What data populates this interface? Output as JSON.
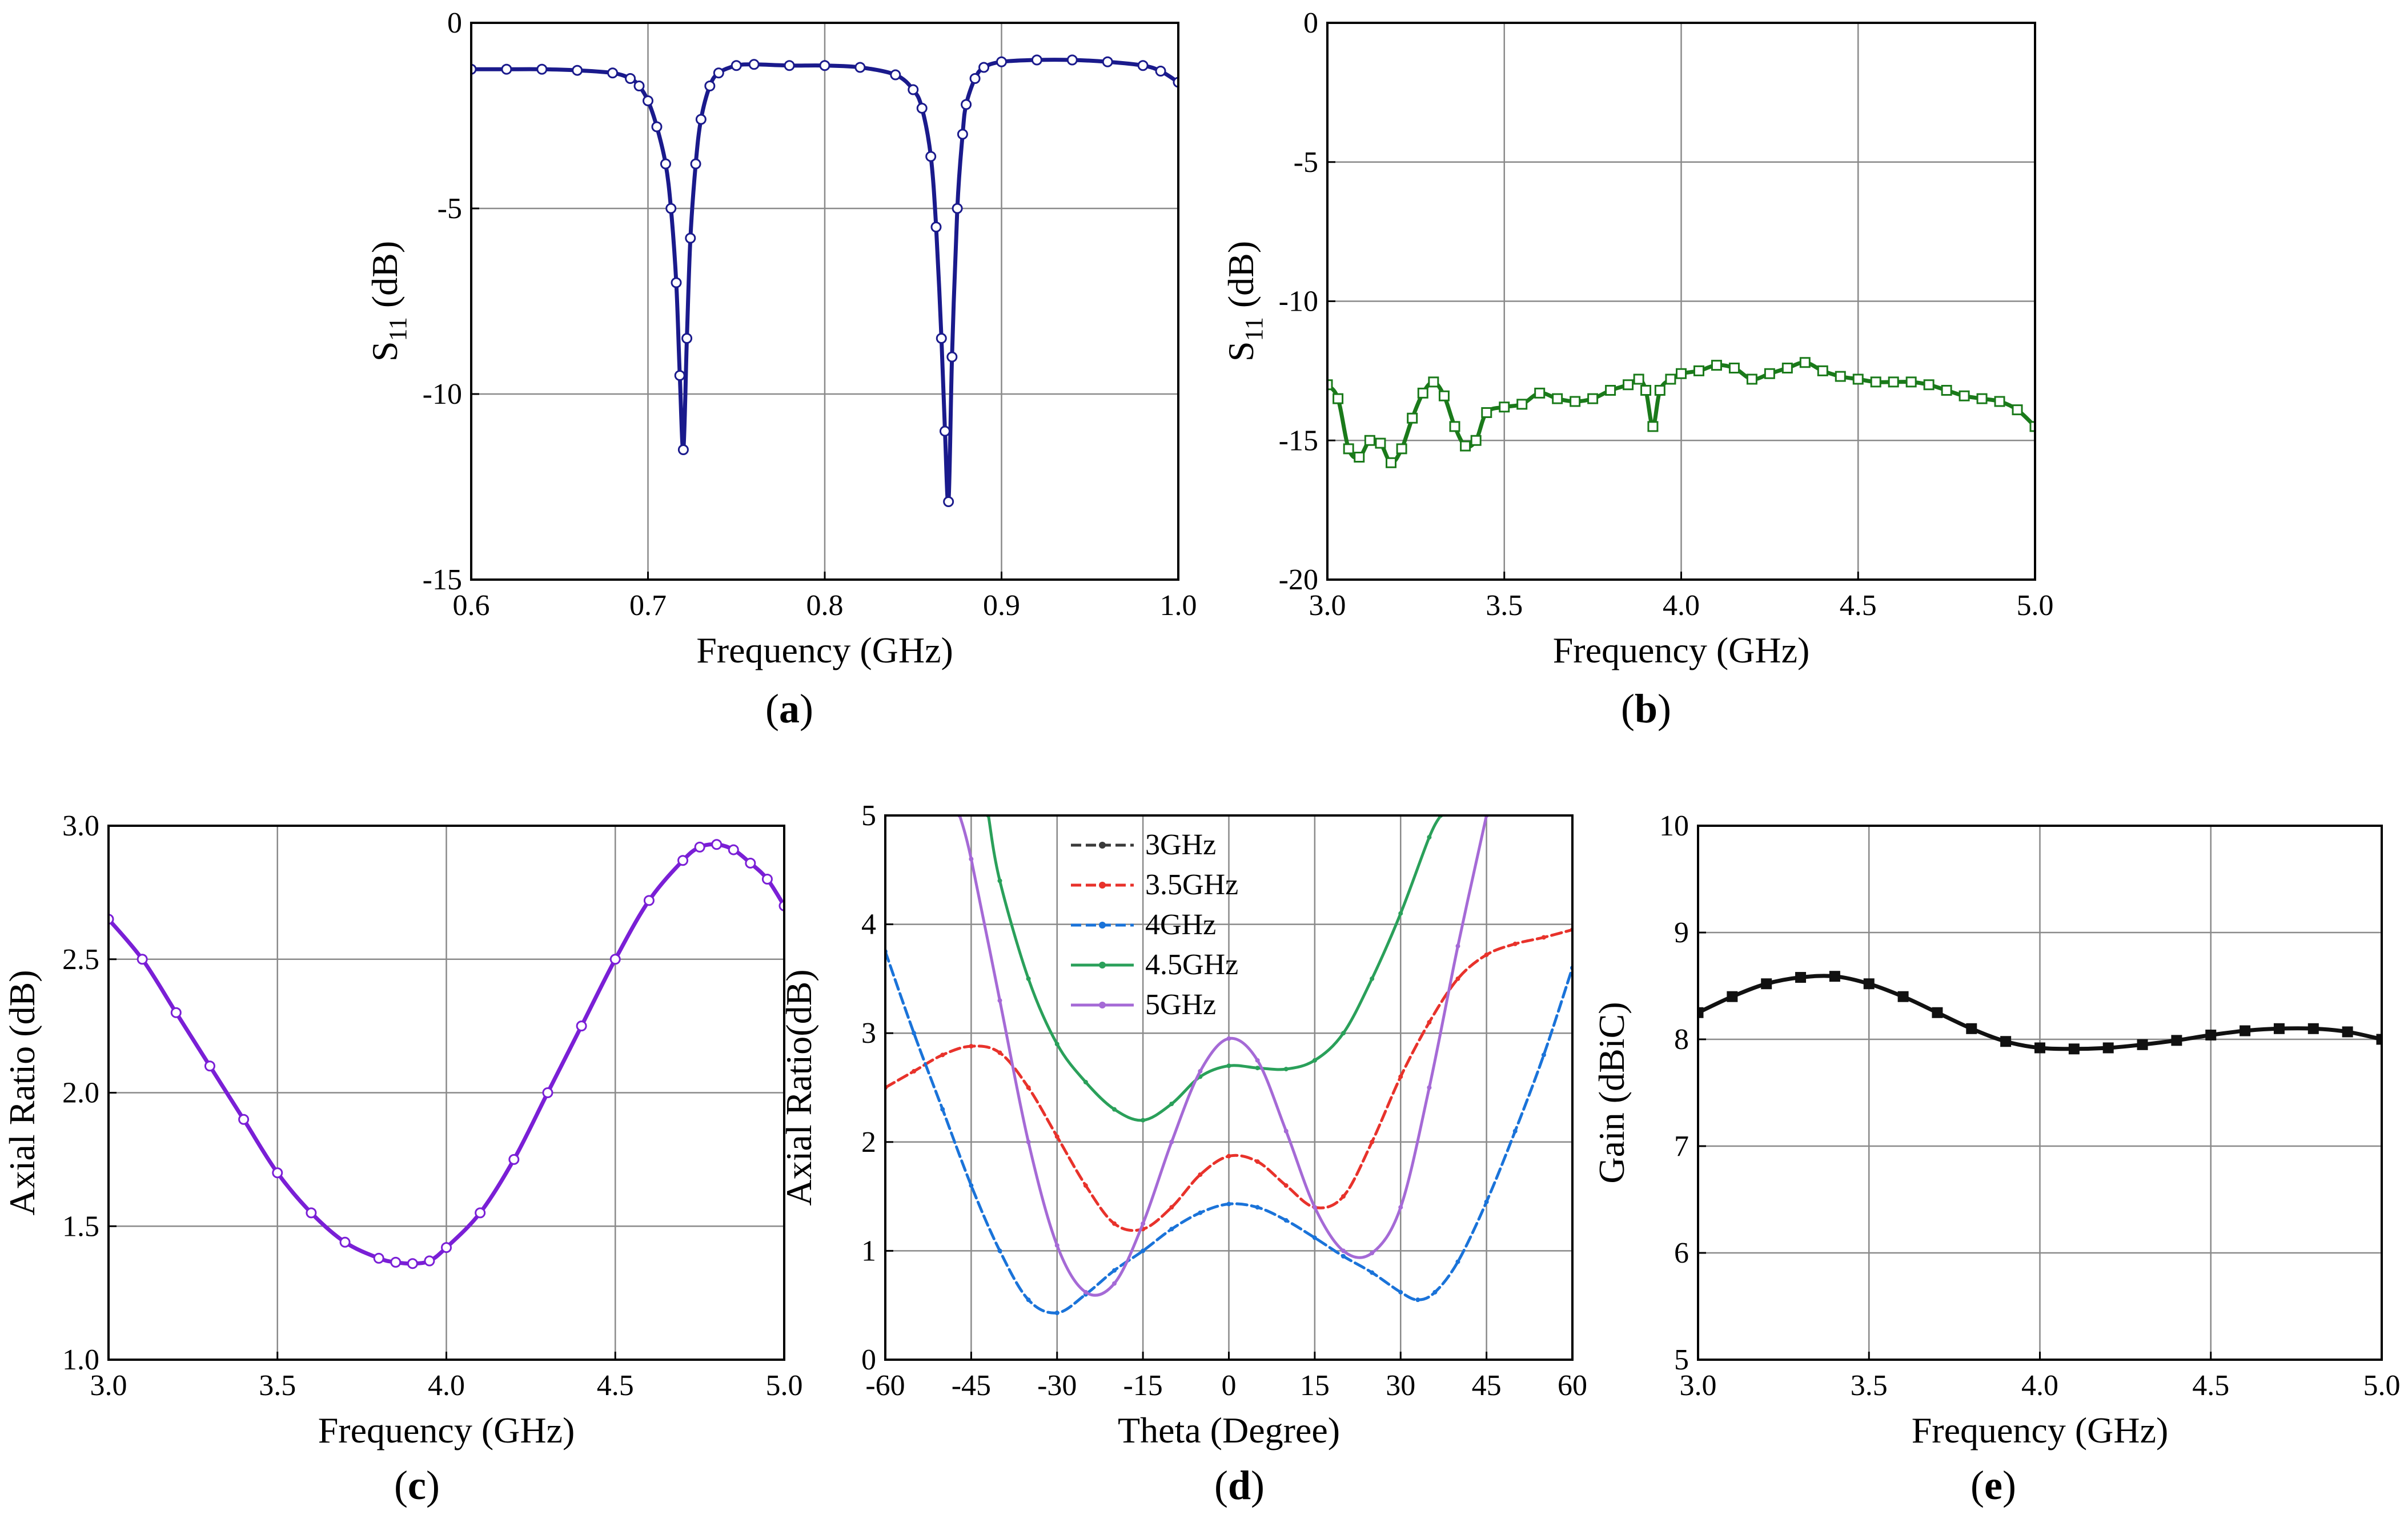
{
  "captions": [
    "(a)",
    "(b)",
    "(c)",
    "(d)",
    "(e)"
  ],
  "chart_data": [
    {
      "id": "a",
      "type": "line",
      "caption_letter": "a",
      "xlabel": "Frequency (GHz)",
      "ylabel_main": "S",
      "ylabel_sub": "11",
      "ylabel_unit": " (dB)",
      "xlim": [
        0.6,
        1.0
      ],
      "ylim": [
        -15,
        0
      ],
      "xticks": [
        0.6,
        0.7,
        0.8,
        0.9,
        1.0
      ],
      "xtick_labels": [
        "0.6",
        "0.7",
        "0.8",
        "0.9",
        "1.0"
      ],
      "yticks": [
        0,
        -5,
        -10,
        -15
      ],
      "ytick_labels": [
        "0",
        "-5",
        "-10",
        "-15"
      ],
      "grid": true,
      "series": [
        {
          "name": "S11",
          "color": "#1a1a8c",
          "marker": "circle",
          "x": [
            0.6,
            0.62,
            0.64,
            0.66,
            0.68,
            0.69,
            0.695,
            0.7,
            0.705,
            0.71,
            0.713,
            0.716,
            0.718,
            0.72,
            0.722,
            0.724,
            0.727,
            0.73,
            0.735,
            0.74,
            0.75,
            0.76,
            0.78,
            0.8,
            0.82,
            0.84,
            0.85,
            0.855,
            0.86,
            0.863,
            0.866,
            0.868,
            0.87,
            0.872,
            0.875,
            0.878,
            0.88,
            0.885,
            0.89,
            0.9,
            0.92,
            0.94,
            0.96,
            0.98,
            0.99,
            1.0
          ],
          "y": [
            -1.25,
            -1.25,
            -1.25,
            -1.28,
            -1.35,
            -1.5,
            -1.7,
            -2.1,
            -2.8,
            -3.8,
            -5.0,
            -7.0,
            -9.5,
            -11.5,
            -8.5,
            -5.8,
            -3.8,
            -2.6,
            -1.7,
            -1.35,
            -1.15,
            -1.12,
            -1.15,
            -1.15,
            -1.2,
            -1.4,
            -1.8,
            -2.3,
            -3.6,
            -5.5,
            -8.5,
            -11.0,
            -12.9,
            -9.0,
            -5.0,
            -3.0,
            -2.2,
            -1.5,
            -1.2,
            -1.05,
            -1.0,
            -1.0,
            -1.05,
            -1.15,
            -1.3,
            -1.6
          ]
        }
      ]
    },
    {
      "id": "b",
      "type": "line",
      "caption_letter": "b",
      "xlabel": "Frequency (GHz)",
      "ylabel_main": "S",
      "ylabel_sub": "11",
      "ylabel_unit": " (dB)",
      "xlim": [
        3.0,
        5.0
      ],
      "ylim": [
        -20,
        0
      ],
      "xticks": [
        3.0,
        3.5,
        4.0,
        4.5,
        5.0
      ],
      "xtick_labels": [
        "3.0",
        "3.5",
        "4.0",
        "4.5",
        "5.0"
      ],
      "yticks": [
        0,
        -5,
        -10,
        -15,
        -20
      ],
      "ytick_labels": [
        "0",
        "-5",
        "-10",
        "-15",
        "-20"
      ],
      "grid": true,
      "series": [
        {
          "name": "S11",
          "color": "#1a7a1a",
          "marker": "square",
          "x": [
            3.0,
            3.03,
            3.06,
            3.09,
            3.12,
            3.15,
            3.18,
            3.21,
            3.24,
            3.27,
            3.3,
            3.33,
            3.36,
            3.39,
            3.42,
            3.45,
            3.5,
            3.55,
            3.6,
            3.65,
            3.7,
            3.75,
            3.8,
            3.85,
            3.88,
            3.9,
            3.92,
            3.94,
            3.97,
            4.0,
            4.05,
            4.1,
            4.15,
            4.2,
            4.25,
            4.3,
            4.35,
            4.4,
            4.45,
            4.5,
            4.55,
            4.6,
            4.65,
            4.7,
            4.75,
            4.8,
            4.85,
            4.9,
            4.95,
            5.0
          ],
          "y": [
            -13.0,
            -13.5,
            -15.3,
            -15.6,
            -15.0,
            -15.1,
            -15.8,
            -15.3,
            -14.2,
            -13.3,
            -12.9,
            -13.4,
            -14.5,
            -15.2,
            -15.0,
            -14.0,
            -13.8,
            -13.7,
            -13.3,
            -13.5,
            -13.6,
            -13.5,
            -13.2,
            -13.0,
            -12.8,
            -13.2,
            -14.5,
            -13.2,
            -12.8,
            -12.6,
            -12.5,
            -12.3,
            -12.4,
            -12.8,
            -12.6,
            -12.4,
            -12.2,
            -12.5,
            -12.7,
            -12.8,
            -12.9,
            -12.9,
            -12.9,
            -13.0,
            -13.2,
            -13.4,
            -13.5,
            -13.6,
            -13.9,
            -14.5
          ]
        }
      ]
    },
    {
      "id": "c",
      "type": "line",
      "caption_letter": "c",
      "xlabel": "Frequency (GHz)",
      "ylabel": "Axial Ratio (dB)",
      "xlim": [
        3.0,
        5.0
      ],
      "ylim": [
        1.0,
        3.0
      ],
      "xticks": [
        3.0,
        3.5,
        4.0,
        4.5,
        5.0
      ],
      "xtick_labels": [
        "3.0",
        "3.5",
        "4.0",
        "4.5",
        "5.0"
      ],
      "yticks": [
        1.0,
        1.5,
        2.0,
        2.5,
        3.0
      ],
      "ytick_labels": [
        "1.0",
        "1.5",
        "2.0",
        "2.5",
        "3.0"
      ],
      "grid": true,
      "series": [
        {
          "name": "Axial Ratio",
          "color": "#7a1fd6",
          "marker": "circle",
          "x": [
            3.0,
            3.1,
            3.2,
            3.3,
            3.4,
            3.5,
            3.6,
            3.7,
            3.8,
            3.85,
            3.9,
            3.95,
            4.0,
            4.1,
            4.2,
            4.3,
            4.4,
            4.5,
            4.6,
            4.7,
            4.75,
            4.8,
            4.85,
            4.9,
            4.95,
            5.0
          ],
          "y": [
            2.65,
            2.5,
            2.3,
            2.1,
            1.9,
            1.7,
            1.55,
            1.44,
            1.38,
            1.365,
            1.36,
            1.37,
            1.42,
            1.55,
            1.75,
            2.0,
            2.25,
            2.5,
            2.72,
            2.87,
            2.92,
            2.93,
            2.91,
            2.86,
            2.8,
            2.7
          ]
        }
      ]
    },
    {
      "id": "d",
      "type": "line",
      "caption_letter": "d",
      "xlabel": "Theta (Degree)",
      "ylabel": "Axial Ratio(dB)",
      "xlim": [
        -60,
        60
      ],
      "ylim": [
        0,
        5
      ],
      "xticks": [
        -60,
        -45,
        -30,
        -15,
        0,
        15,
        30,
        45,
        60
      ],
      "xtick_labels": [
        "-60",
        "-45",
        "-30",
        "-15",
        "0",
        "15",
        "30",
        "45",
        "60"
      ],
      "yticks": [
        0,
        1,
        2,
        3,
        4,
        5
      ],
      "ytick_labels": [
        "0",
        "1",
        "2",
        "3",
        "4",
        "5"
      ],
      "grid": true,
      "legend_position": "top-center",
      "series": [
        {
          "name": "3GHz",
          "color": "#3a3a3a",
          "x": [],
          "y": []
        },
        {
          "name": "3.5GHz",
          "color": "#e8322b",
          "x": [
            -60,
            -55,
            -50,
            -45,
            -40,
            -35,
            -30,
            -25,
            -20,
            -15,
            -10,
            -5,
            0,
            5,
            10,
            15,
            20,
            25,
            30,
            35,
            40,
            45,
            50,
            55,
            60
          ],
          "y": [
            2.5,
            2.65,
            2.8,
            2.88,
            2.82,
            2.5,
            2.05,
            1.6,
            1.25,
            1.2,
            1.4,
            1.7,
            1.87,
            1.82,
            1.6,
            1.4,
            1.5,
            2.0,
            2.6,
            3.1,
            3.5,
            3.72,
            3.82,
            3.88,
            3.95
          ]
        },
        {
          "name": "4GHz",
          "color": "#1a73d9",
          "x": [
            -60,
            -55,
            -50,
            -45,
            -40,
            -35,
            -30,
            -25,
            -20,
            -15,
            -10,
            -5,
            0,
            5,
            10,
            15,
            20,
            25,
            30,
            33,
            36,
            40,
            45,
            50,
            55,
            60
          ],
          "y": [
            3.75,
            3.0,
            2.3,
            1.6,
            1.0,
            0.55,
            0.43,
            0.6,
            0.82,
            1.0,
            1.2,
            1.35,
            1.43,
            1.4,
            1.28,
            1.12,
            0.95,
            0.8,
            0.62,
            0.55,
            0.62,
            0.9,
            1.45,
            2.1,
            2.8,
            3.6
          ]
        },
        {
          "name": "4.5GHz",
          "color": "#2aa05a",
          "x": [
            -42,
            -40,
            -35,
            -30,
            -25,
            -20,
            -15,
            -10,
            -5,
            0,
            5,
            10,
            15,
            20,
            25,
            30,
            35,
            37
          ],
          "y": [
            5.0,
            4.4,
            3.5,
            2.9,
            2.55,
            2.3,
            2.2,
            2.35,
            2.6,
            2.7,
            2.68,
            2.67,
            2.75,
            3.0,
            3.5,
            4.1,
            4.8,
            5.0
          ]
        },
        {
          "name": "5GHz",
          "color": "#a56ad6",
          "x": [
            -47,
            -45,
            -40,
            -35,
            -30,
            -25,
            -20,
            -15,
            -10,
            -5,
            0,
            5,
            10,
            15,
            20,
            25,
            30,
            35,
            40,
            45
          ],
          "y": [
            5.0,
            4.6,
            3.3,
            2.0,
            1.05,
            0.62,
            0.7,
            1.25,
            2.0,
            2.65,
            2.95,
            2.75,
            2.1,
            1.4,
            1.0,
            0.98,
            1.4,
            2.5,
            3.8,
            5.0
          ]
        }
      ]
    },
    {
      "id": "e",
      "type": "line",
      "caption_letter": "e",
      "xlabel": "Frequency (GHz)",
      "ylabel": "Gain (dBiC)",
      "xlim": [
        3.0,
        5.0
      ],
      "ylim": [
        5,
        10
      ],
      "xticks": [
        3.0,
        3.5,
        4.0,
        4.5,
        5.0
      ],
      "xtick_labels": [
        "3.0",
        "3.5",
        "4.0",
        "4.5",
        "5.0"
      ],
      "yticks": [
        5,
        6,
        7,
        8,
        9,
        10
      ],
      "ytick_labels": [
        "5",
        "6",
        "7",
        "8",
        "9",
        "10"
      ],
      "grid": true,
      "series": [
        {
          "name": "Gain",
          "color": "#111111",
          "marker": "square",
          "x": [
            3.0,
            3.1,
            3.2,
            3.3,
            3.4,
            3.5,
            3.6,
            3.7,
            3.8,
            3.9,
            4.0,
            4.1,
            4.2,
            4.3,
            4.4,
            4.5,
            4.6,
            4.7,
            4.8,
            4.9,
            5.0
          ],
          "y": [
            8.25,
            8.4,
            8.52,
            8.58,
            8.59,
            8.52,
            8.4,
            8.25,
            8.1,
            7.98,
            7.92,
            7.91,
            7.92,
            7.95,
            7.99,
            8.04,
            8.08,
            8.1,
            8.1,
            8.07,
            8.0
          ]
        }
      ]
    }
  ]
}
